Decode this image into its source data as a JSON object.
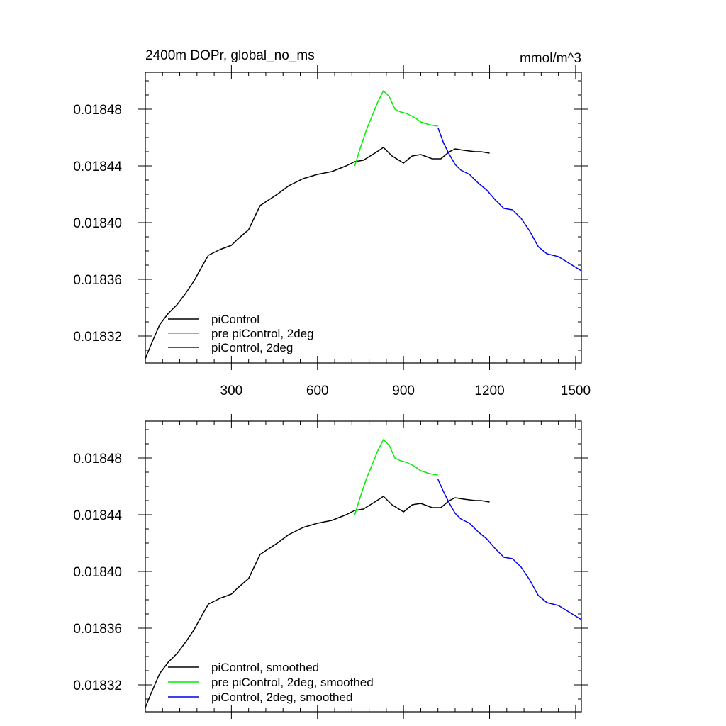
{
  "chart_data": [
    {
      "type": "line",
      "title": "2400m DOPr, global_no_ms",
      "units": "mmol/m^3",
      "xlabel": "",
      "ylabel": "",
      "xlim": [
        0,
        1520
      ],
      "ylim": [
        0.018301,
        0.018506
      ],
      "xticks": [
        300,
        600,
        900,
        1200,
        1500
      ],
      "xtick_labels": [
        "300",
        "600",
        "900",
        "1200",
        "1500"
      ],
      "yticks": [
        0.01832,
        0.01836,
        0.0184,
        0.01844,
        0.01848
      ],
      "ytick_labels": [
        "0.01832",
        "0.01836",
        "0.01840",
        "0.01844",
        "0.01848"
      ],
      "legend_position": "bottom-left",
      "series": [
        {
          "name": "piControl",
          "color": "#000000",
          "x": [
            0,
            20,
            50,
            80,
            110,
            140,
            170,
            200,
            220,
            260,
            300,
            320,
            360,
            400,
            430,
            460,
            500,
            550,
            600,
            650,
            700,
            730,
            760,
            800,
            830,
            860,
            900,
            930,
            960,
            1000,
            1030,
            1060,
            1080,
            1110,
            1150,
            1170,
            1200
          ],
          "y": [
            0.018304,
            0.018314,
            0.018328,
            0.018336,
            0.018342,
            0.01835,
            0.018359,
            0.01837,
            0.018377,
            0.018381,
            0.018384,
            0.018388,
            0.018395,
            0.018412,
            0.018416,
            0.01842,
            0.018426,
            0.018431,
            0.018434,
            0.018436,
            0.01844,
            0.018443,
            0.018444,
            0.018449,
            0.018453,
            0.018447,
            0.018442,
            0.018447,
            0.018448,
            0.018445,
            0.018445,
            0.01845,
            0.018452,
            0.018451,
            0.01845,
            0.01845,
            0.018449
          ]
        },
        {
          "name": "pre piControl, 2deg",
          "color": "#00ee00",
          "x": [
            730,
            750,
            770,
            790,
            810,
            830,
            850,
            870,
            890,
            910,
            940,
            960,
            990,
            1020
          ],
          "y": [
            0.01844,
            0.018453,
            0.018465,
            0.018475,
            0.018485,
            0.018493,
            0.018489,
            0.01848,
            0.018478,
            0.018477,
            0.018474,
            0.018471,
            0.018469,
            0.018468
          ]
        },
        {
          "name": "piControl, 2deg",
          "color": "#0000ee",
          "x": [
            1020,
            1040,
            1060,
            1080,
            1100,
            1130,
            1160,
            1190,
            1220,
            1250,
            1280,
            1310,
            1340,
            1370,
            1400,
            1440,
            1480,
            1520
          ],
          "y": [
            0.018467,
            0.018456,
            0.018448,
            0.018441,
            0.018437,
            0.018434,
            0.018428,
            0.018423,
            0.018416,
            0.01841,
            0.018409,
            0.018403,
            0.018394,
            0.018383,
            0.018378,
            0.018376,
            0.018371,
            0.018366
          ]
        }
      ]
    },
    {
      "type": "line",
      "title": "",
      "xlabel": "",
      "ylabel": "",
      "xlim": [
        0,
        1520
      ],
      "ylim": [
        0.018301,
        0.018506
      ],
      "xticks": [
        300,
        600,
        900,
        1200,
        1500
      ],
      "yticks": [
        0.01832,
        0.01836,
        0.0184,
        0.01844,
        0.01848
      ],
      "ytick_labels": [
        "0.01832",
        "0.01836",
        "0.01840",
        "0.01844",
        "0.01848"
      ],
      "legend_position": "bottom-left",
      "series": [
        {
          "name": "piControl, smoothed",
          "color": "#000000",
          "x": [
            0,
            20,
            50,
            80,
            110,
            140,
            170,
            200,
            220,
            260,
            300,
            320,
            360,
            400,
            430,
            460,
            500,
            550,
            600,
            650,
            700,
            730,
            760,
            800,
            830,
            860,
            900,
            930,
            960,
            1000,
            1030,
            1060,
            1080,
            1110,
            1150,
            1170,
            1200
          ],
          "y": [
            0.018304,
            0.018314,
            0.018328,
            0.018336,
            0.018342,
            0.01835,
            0.018359,
            0.01837,
            0.018377,
            0.018381,
            0.018384,
            0.018388,
            0.018395,
            0.018412,
            0.018416,
            0.01842,
            0.018426,
            0.018431,
            0.018434,
            0.018436,
            0.01844,
            0.018443,
            0.018444,
            0.018449,
            0.018453,
            0.018447,
            0.018442,
            0.018447,
            0.018448,
            0.018445,
            0.018445,
            0.01845,
            0.018452,
            0.018451,
            0.01845,
            0.01845,
            0.018449
          ]
        },
        {
          "name": "pre piControl, 2deg, smoothed",
          "color": "#00ee00",
          "x": [
            730,
            750,
            770,
            790,
            810,
            830,
            850,
            870,
            890,
            910,
            940,
            960,
            990,
            1020
          ],
          "y": [
            0.01844,
            0.018453,
            0.018465,
            0.018475,
            0.018485,
            0.018493,
            0.018489,
            0.01848,
            0.018478,
            0.018477,
            0.018474,
            0.018471,
            0.018469,
            0.018468
          ]
        },
        {
          "name": "piControl, 2deg, smoothed",
          "color": "#0000ee",
          "x": [
            1020,
            1040,
            1060,
            1080,
            1100,
            1130,
            1160,
            1190,
            1220,
            1250,
            1280,
            1310,
            1340,
            1370,
            1400,
            1440,
            1480,
            1520
          ],
          "y": [
            0.018465,
            0.018456,
            0.018448,
            0.018441,
            0.018437,
            0.018434,
            0.018428,
            0.018423,
            0.018416,
            0.01841,
            0.018409,
            0.018403,
            0.018394,
            0.018383,
            0.018378,
            0.018376,
            0.018371,
            0.018366
          ]
        }
      ]
    }
  ]
}
